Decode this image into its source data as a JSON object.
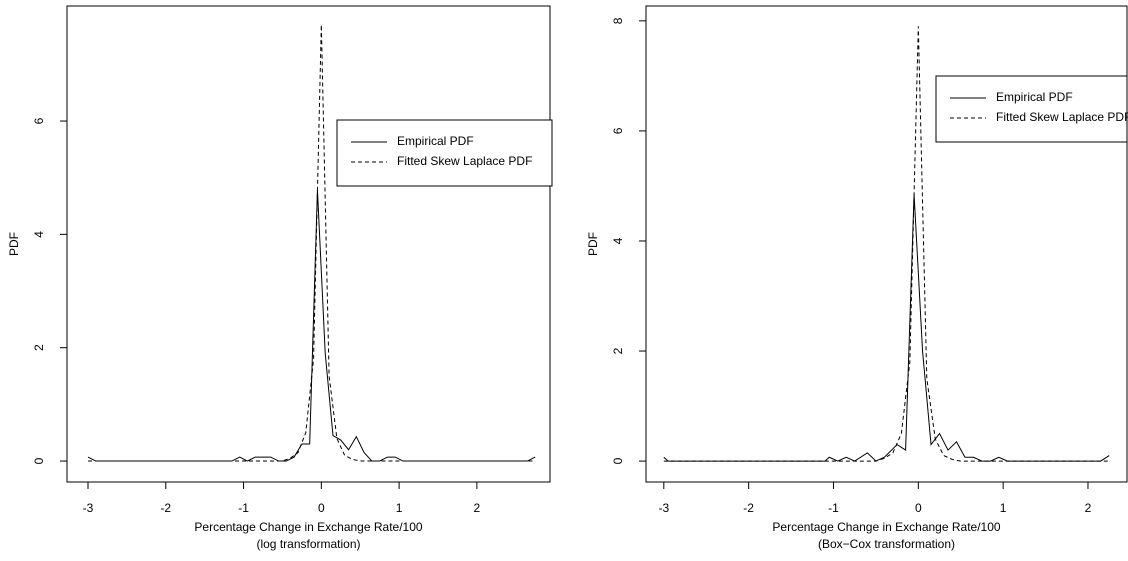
{
  "chart_data": [
    {
      "type": "line",
      "xlabel": "Percentage Change in Exchange Rate/100",
      "xlabel_note": "(log transformation)",
      "ylabel": "PDF",
      "xlim": [
        -3.27,
        2.94
      ],
      "ylim": [
        -0.37,
        8.03
      ],
      "xticks": [
        -3,
        -2,
        -1,
        0,
        1,
        2
      ],
      "yticks": [
        0,
        2,
        4,
        6
      ],
      "legend": "right",
      "series": [
        {
          "name": "Empirical PDF",
          "color": "#000000",
          "linestyle": "solid",
          "x": [
            -3.0,
            -2.9,
            -1.15,
            -1.05,
            -0.95,
            -0.85,
            -0.65,
            -0.55,
            -0.45,
            -0.35,
            -0.25,
            -0.15,
            -0.05,
            0.05,
            0.15,
            0.25,
            0.35,
            0.45,
            0.55,
            0.65,
            0.75,
            0.85,
            0.95,
            1.05,
            2.65,
            2.75
          ],
          "values": [
            0.07,
            0,
            0,
            0.07,
            0,
            0.07,
            0.07,
            0,
            0,
            0.07,
            0.3,
            0.3,
            4.78,
            1.9,
            0.45,
            0.37,
            0.2,
            0.43,
            0.15,
            0,
            0,
            0.07,
            0.07,
            0,
            0,
            0.07
          ]
        },
        {
          "name": "Fitted Skew Laplace PDF",
          "color": "#000000",
          "linestyle": "dashed",
          "x": [
            -3.0,
            -0.5,
            -0.4,
            -0.3,
            -0.2,
            -0.1,
            0.0,
            0.1,
            0.2,
            0.3,
            0.4,
            0.5,
            2.75
          ],
          "values": [
            0,
            0,
            0.05,
            0.15,
            0.5,
            1.8,
            7.7,
            1.5,
            0.4,
            0.1,
            0.03,
            0,
            0
          ]
        }
      ]
    },
    {
      "type": "line",
      "xlabel": "Percentage Change in Exchange Rate/100",
      "xlabel_note": "(Box−Cox transformation)",
      "ylabel": "PDF",
      "xlim": [
        -3.21,
        2.46
      ],
      "ylim": [
        -0.38,
        8.27
      ],
      "xticks": [
        -3,
        -2,
        -1,
        0,
        1,
        2
      ],
      "yticks": [
        0,
        2,
        4,
        6,
        8
      ],
      "legend": "right",
      "series": [
        {
          "name": "Empirical PDF",
          "color": "#000000",
          "linestyle": "solid",
          "x": [
            -3.0,
            -2.95,
            -1.1,
            -1.05,
            -0.95,
            -0.85,
            -0.75,
            -0.6,
            -0.5,
            -0.4,
            -0.25,
            -0.15,
            -0.05,
            0.05,
            0.15,
            0.25,
            0.35,
            0.45,
            0.55,
            0.65,
            0.75,
            0.85,
            0.95,
            1.05,
            2.15,
            2.25
          ],
          "values": [
            0.07,
            0,
            0,
            0.07,
            0,
            0.07,
            0,
            0.15,
            0,
            0.07,
            0.3,
            0.2,
            4.85,
            2.0,
            0.3,
            0.5,
            0.2,
            0.35,
            0.07,
            0.07,
            0,
            0,
            0.07,
            0,
            0,
            0.1
          ]
        },
        {
          "name": "Fitted Skew Laplace PDF",
          "color": "#000000",
          "linestyle": "dashed",
          "x": [
            -3.0,
            -0.5,
            -0.4,
            -0.3,
            -0.2,
            -0.1,
            0.0,
            0.1,
            0.2,
            0.3,
            0.4,
            0.5,
            2.25
          ],
          "values": [
            0,
            0,
            0.05,
            0.15,
            0.5,
            1.8,
            7.9,
            1.5,
            0.4,
            0.1,
            0.03,
            0,
            0
          ]
        }
      ]
    }
  ]
}
